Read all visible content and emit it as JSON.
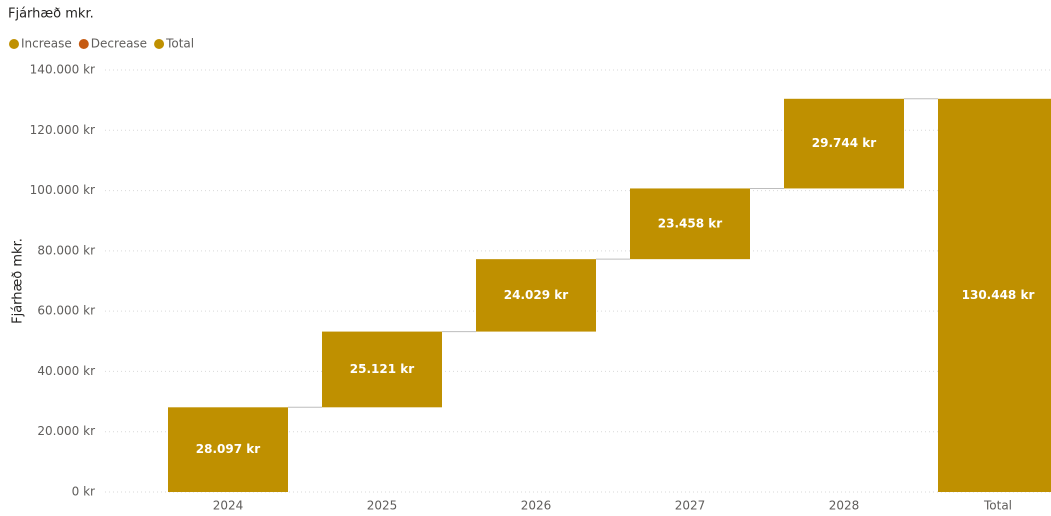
{
  "chart_data": {
    "type": "waterfall",
    "title": "Fjárhæð mkr.",
    "y_label": "Fjárhæð mkr.",
    "legend": [
      {
        "name": "Increase",
        "color": "#bf9000"
      },
      {
        "name": "Decrease",
        "color": "#c55a11"
      },
      {
        "name": "Total",
        "color": "#bf9000"
      }
    ],
    "categories": [
      "2024",
      "2025",
      "2026",
      "2027",
      "2028",
      "Total"
    ],
    "values": [
      28097,
      25121,
      24029,
      23458,
      29744,
      130448
    ],
    "value_labels": [
      "28.097 kr",
      "25.121 kr",
      "24.029 kr",
      "23.458 kr",
      "29.744 kr",
      "130.448 kr"
    ],
    "ylim": [
      0,
      140000
    ],
    "yticks": [
      {
        "value": 0,
        "label": "0 kr"
      },
      {
        "value": 20000,
        "label": "20.000 kr"
      },
      {
        "value": 40000,
        "label": "40.000 kr"
      },
      {
        "value": 60000,
        "label": "60.000 kr"
      },
      {
        "value": 80000,
        "label": "80.000 kr"
      },
      {
        "value": 100000,
        "label": "100.000 kr"
      },
      {
        "value": 120000,
        "label": "120.000 kr"
      },
      {
        "value": 140000,
        "label": "140.000 kr"
      }
    ],
    "grid": true
  }
}
